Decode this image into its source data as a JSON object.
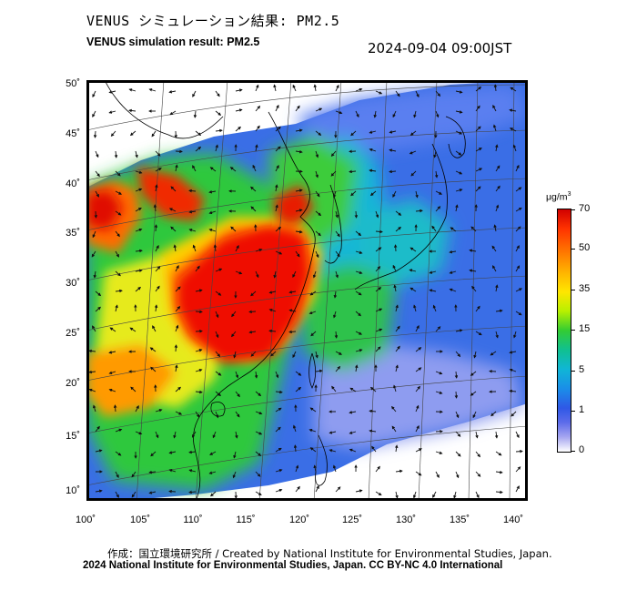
{
  "header": {
    "title_jp": "VENUS シミュレーション結果: PM2.5",
    "title_en": "VENUS simulation result: PM2.5",
    "timestamp": "2024-09-04 09:00JST"
  },
  "map": {
    "lat_labels": [
      "50˚",
      "45˚",
      "40˚",
      "35˚",
      "30˚",
      "25˚",
      "20˚",
      "15˚",
      "10˚"
    ],
    "lon_labels": [
      "100˚",
      "105˚",
      "110˚",
      "115˚",
      "120˚",
      "125˚",
      "130˚",
      "135˚",
      "140˚"
    ]
  },
  "colorbar": {
    "unit_base": "μg/m",
    "unit_exp": "3",
    "labels": [
      "70",
      "50",
      "35",
      "15",
      "5",
      "1",
      "0"
    ],
    "colors": {
      "max": "#d10000",
      "high": "#ff7a00",
      "mid": "#ffe600",
      "low": "#33cc33",
      "lower": "#10b6d6",
      "min": "#2f58e6",
      "zero": "#ffffff"
    }
  },
  "footer": {
    "credit_jp": "作成：国立環境研究所 / Created by National Institute for Environmental Studies, Japan.",
    "copyright": "2024 National Institute for Environmental Studies, Japan. CC BY-NC 4.0 International"
  }
}
